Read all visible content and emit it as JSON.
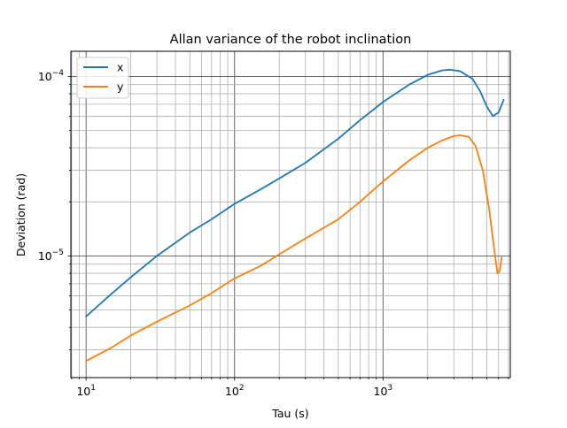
{
  "chart_data": {
    "type": "line",
    "title": "Allan variance of the robot inclination",
    "xlabel": "Tau (s)",
    "ylabel": "Deviation (rad)",
    "xscale": "log",
    "yscale": "log",
    "xlim": [
      7.9,
      7200
    ],
    "ylim": [
      2.1e-06,
      0.000138
    ],
    "grid": "major and minor",
    "legend_position": "top-left",
    "x_ticks": [
      {
        "value": 10,
        "base": "10",
        "exp": "1"
      },
      {
        "value": 100,
        "base": "10",
        "exp": "2"
      },
      {
        "value": 1000,
        "base": "10",
        "exp": "3"
      }
    ],
    "y_ticks": [
      {
        "value": 1e-05,
        "base": "10",
        "exp": "−5"
      },
      {
        "value": 0.0001,
        "base": "10",
        "exp": "−4"
      }
    ],
    "series": [
      {
        "name": "x",
        "color": "#1f77b4",
        "points": [
          [
            10,
            4.6e-06
          ],
          [
            15,
            6.2e-06
          ],
          [
            20,
            7.6e-06
          ],
          [
            30,
            1e-05
          ],
          [
            50,
            1.35e-05
          ],
          [
            70,
            1.6e-05
          ],
          [
            100,
            1.95e-05
          ],
          [
            150,
            2.35e-05
          ],
          [
            200,
            2.7e-05
          ],
          [
            300,
            3.3e-05
          ],
          [
            500,
            4.5e-05
          ],
          [
            700,
            5.7e-05
          ],
          [
            1000,
            7.2e-05
          ],
          [
            1500,
            9e-05
          ],
          [
            2000,
            0.000102
          ],
          [
            2500,
            0.000108
          ],
          [
            2800,
            0.000109
          ],
          [
            3300,
            0.000107
          ],
          [
            4000,
            9.7e-05
          ],
          [
            4500,
            8.3e-05
          ],
          [
            5000,
            6.8e-05
          ],
          [
            5500,
            6e-05
          ],
          [
            6000,
            6.3e-05
          ],
          [
            6500,
            7.4e-05
          ]
        ]
      },
      {
        "name": "y",
        "color": "#ff7f0e",
        "points": [
          [
            10,
            2.6e-06
          ],
          [
            15,
            3.1e-06
          ],
          [
            20,
            3.6e-06
          ],
          [
            30,
            4.3e-06
          ],
          [
            50,
            5.3e-06
          ],
          [
            70,
            6.2e-06
          ],
          [
            100,
            7.5e-06
          ],
          [
            150,
            8.8e-06
          ],
          [
            200,
            1.02e-05
          ],
          [
            300,
            1.25e-05
          ],
          [
            500,
            1.6e-05
          ],
          [
            700,
            2e-05
          ],
          [
            1000,
            2.6e-05
          ],
          [
            1500,
            3.4e-05
          ],
          [
            2000,
            4e-05
          ],
          [
            2500,
            4.4e-05
          ],
          [
            3000,
            4.65e-05
          ],
          [
            3300,
            4.7e-05
          ],
          [
            3800,
            4.6e-05
          ],
          [
            4200,
            4.1e-05
          ],
          [
            4700,
            3e-05
          ],
          [
            5200,
            1.8e-05
          ],
          [
            5600,
            1.1e-05
          ],
          [
            5900,
            8e-06
          ],
          [
            6100,
            8.2e-06
          ],
          [
            6300,
            9.8e-06
          ]
        ]
      }
    ]
  }
}
